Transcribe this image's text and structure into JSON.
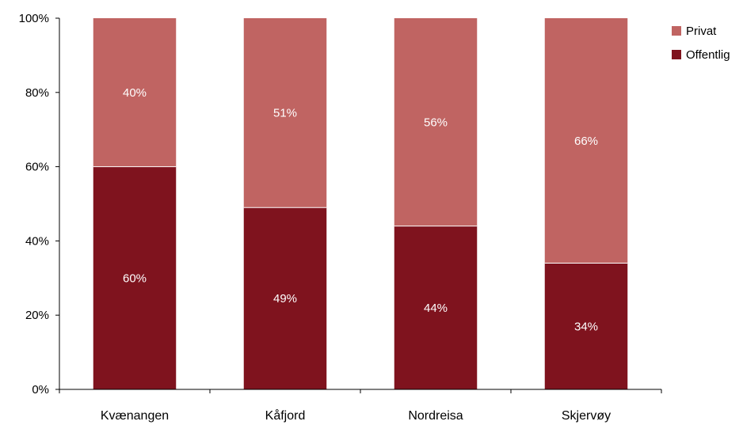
{
  "chart_data": {
    "type": "bar",
    "stacked": true,
    "categories": [
      "Kvænangen",
      "Kåfjord",
      "Nordreisa",
      "Skjervøy"
    ],
    "series": [
      {
        "name": "Offentlig",
        "values": [
          60,
          49,
          44,
          34
        ],
        "labels": [
          "60%",
          "49%",
          "44%",
          "34%"
        ],
        "color": "#7f131e"
      },
      {
        "name": "Privat",
        "values": [
          40,
          51,
          56,
          66
        ],
        "labels": [
          "40%",
          "51%",
          "56%",
          "66%"
        ],
        "color": "#c06462"
      }
    ],
    "legend_order": [
      "Privat",
      "Offentlig"
    ],
    "ylim": [
      0,
      100
    ],
    "yticks": [
      "0%",
      "20%",
      "40%",
      "60%",
      "80%",
      "100%"
    ],
    "grid": false,
    "legend": "top-right"
  }
}
